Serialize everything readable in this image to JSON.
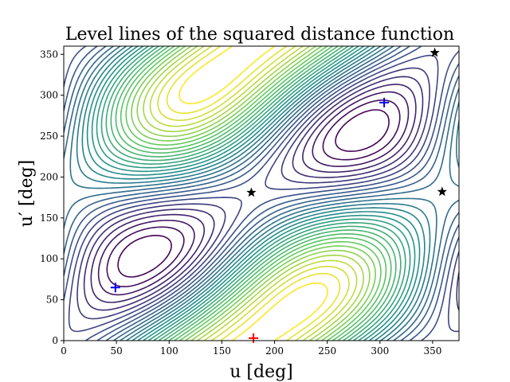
{
  "chart_data": {
    "type": "contour",
    "title": "Level lines of the squared distance function",
    "xlabel": "u [deg]",
    "ylabel": "u′ [deg]",
    "xlim": [
      0,
      375
    ],
    "ylim": [
      0,
      360
    ],
    "xticks": [
      0,
      50,
      100,
      150,
      200,
      250,
      300,
      350
    ],
    "yticks": [
      0,
      50,
      100,
      150,
      200,
      250,
      300,
      350
    ],
    "grid": false,
    "legend": "none",
    "colormap": [
      "#440154",
      "#3b528b",
      "#21918c",
      "#5ec962",
      "#fde725"
    ],
    "contour_levels": 30,
    "markers": [
      {
        "symbol": "+",
        "color": "#0000ff",
        "x": 49,
        "y": 65
      },
      {
        "symbol": "+",
        "color": "#0000ff",
        "x": 304,
        "y": 291
      },
      {
        "symbol": "+",
        "color": "#ff0000",
        "x": 180,
        "y": 3
      },
      {
        "symbol": "star",
        "color": "#000000",
        "x": 178,
        "y": 181
      },
      {
        "symbol": "star",
        "color": "#000000",
        "x": 352,
        "y": 352
      },
      {
        "symbol": "star",
        "color": "#000000",
        "x": 359,
        "y": 182
      }
    ]
  }
}
